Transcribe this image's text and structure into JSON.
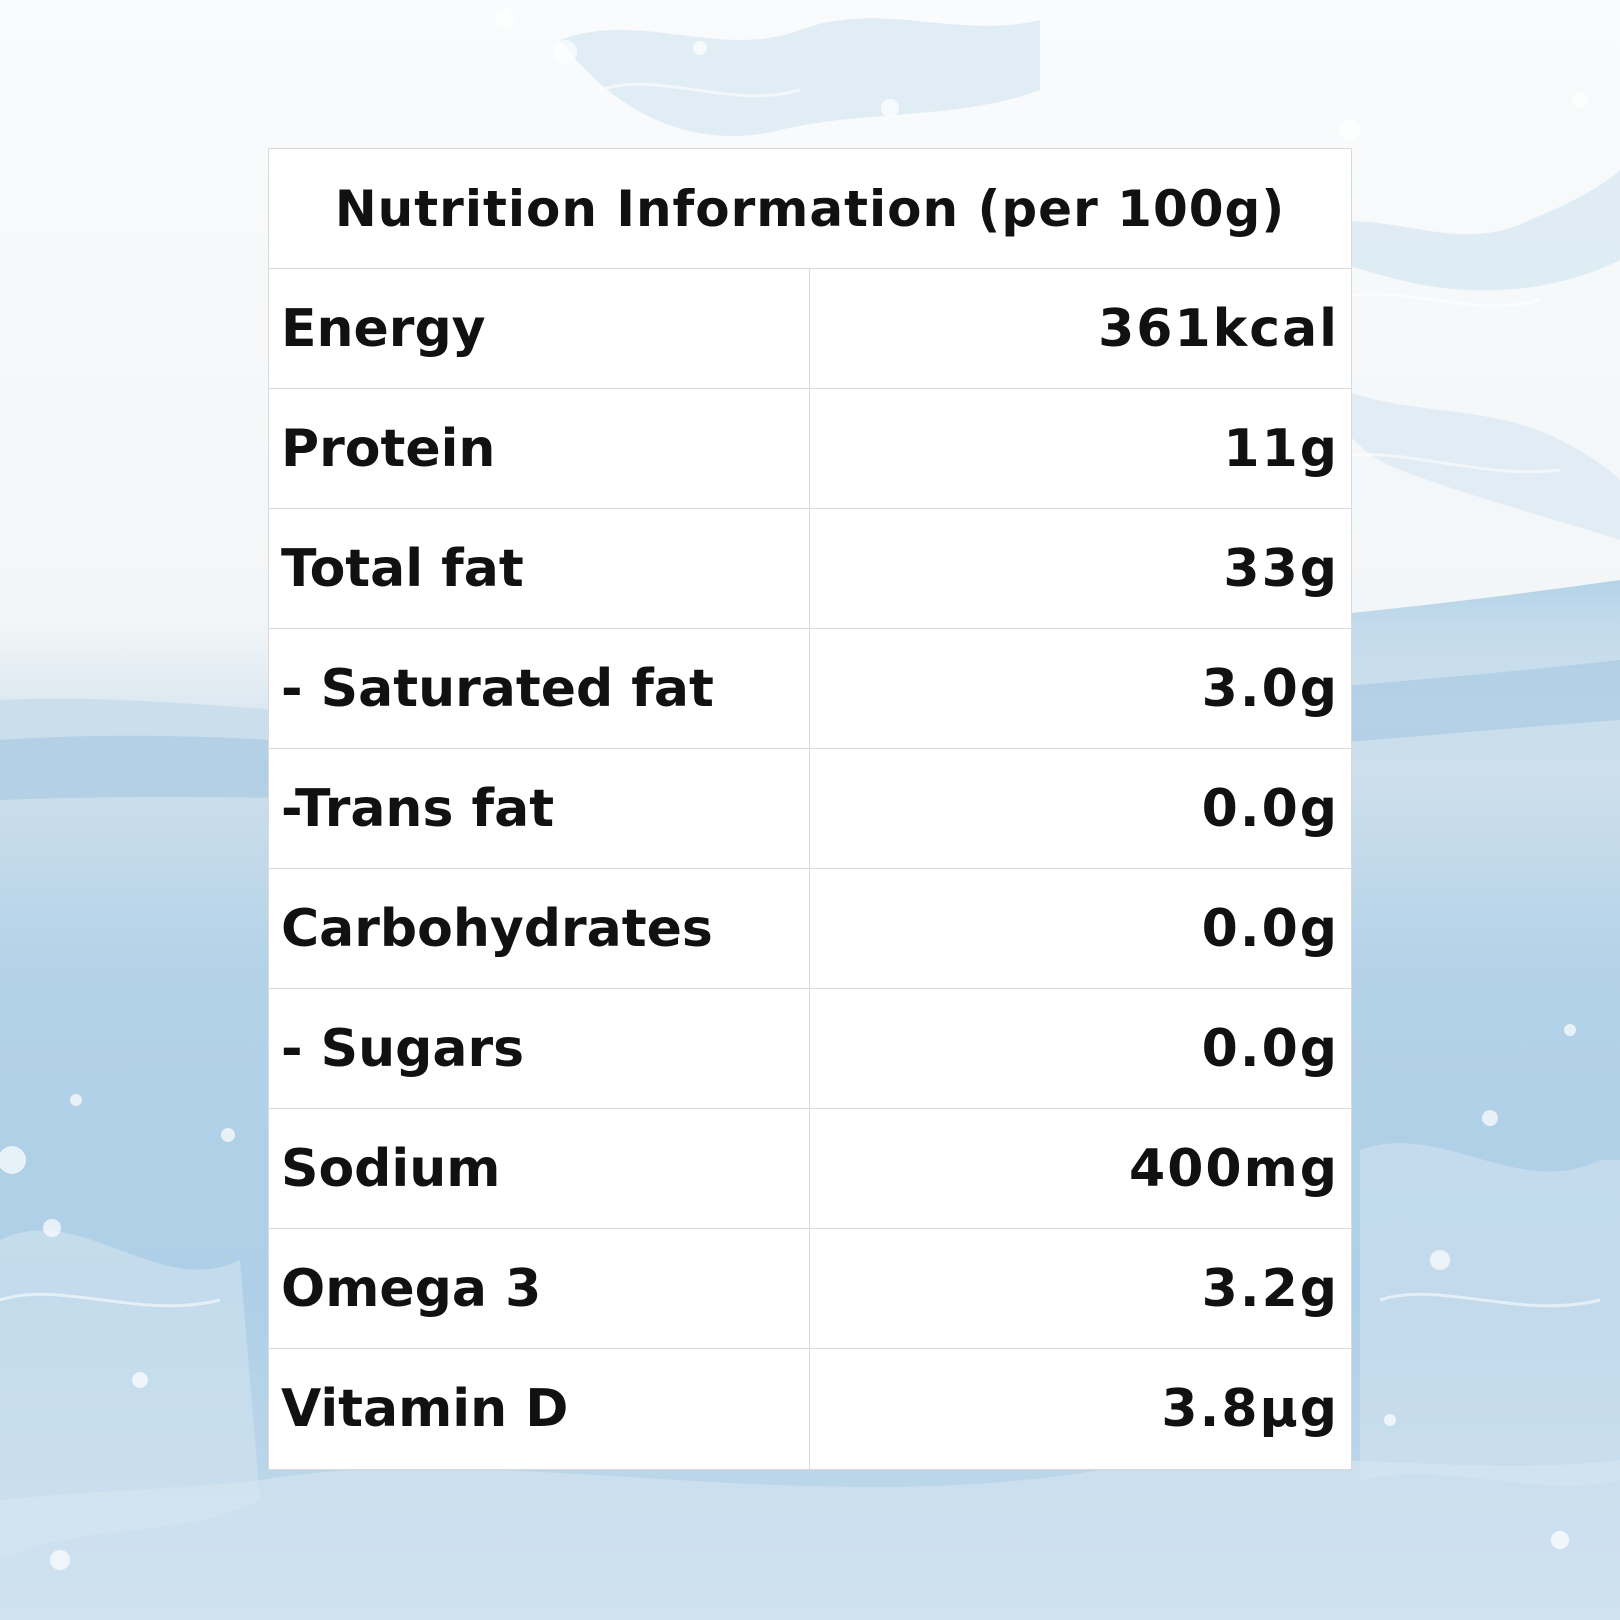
{
  "panel": {
    "title": "Nutrition Information (per 100g)"
  },
  "rows": [
    {
      "name": "Energy",
      "value": "361kcal"
    },
    {
      "name": "Protein",
      "value": "11g"
    },
    {
      "name": "Total fat",
      "value": "33g"
    },
    {
      "name": "- Saturated fat",
      "value": "3.0g"
    },
    {
      "name": "-Trans fat",
      "value": "0.0g"
    },
    {
      "name": "Carbohydrates",
      "value": "0.0g"
    },
    {
      "name": "- Sugars",
      "value": "0.0g"
    },
    {
      "name": "Sodium",
      "value": "400mg"
    },
    {
      "name": "Omega 3",
      "value": "3.2g"
    },
    {
      "name": "Vitamin D",
      "value": "3.8µg"
    }
  ],
  "colors": {
    "text": "#111111",
    "border": "#d9d9d9",
    "panel_bg": "#ffffff",
    "water": "#aecfe7"
  },
  "background": {
    "icon": "water-splash"
  }
}
